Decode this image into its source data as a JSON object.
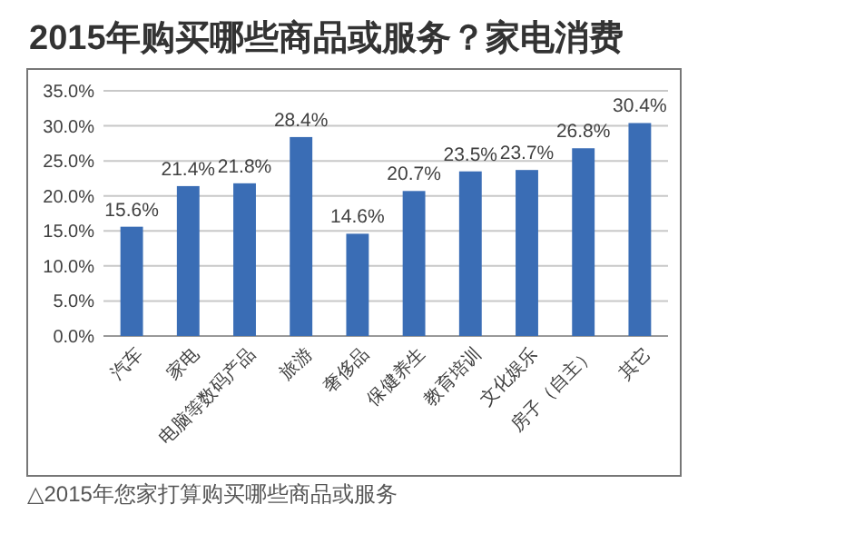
{
  "chart_data": {
    "type": "bar",
    "title": "2015年购买哪些商品或服务？家电消费",
    "categories": [
      "汽车",
      "家电",
      "电脑等数码产品",
      "旅游",
      "奢侈品",
      "保健养生",
      "教育培训",
      "文化娱乐",
      "房子（自主）",
      "其它"
    ],
    "values": [
      15.6,
      21.4,
      21.8,
      28.4,
      14.6,
      20.7,
      23.5,
      23.7,
      26.8,
      30.4
    ],
    "value_labels": [
      "15.6%",
      "21.4%",
      "21.8%",
      "28.4%",
      "14.6%",
      "20.7%",
      "23.5%",
      "23.7%",
      "26.8%",
      "30.4%"
    ],
    "color": "#3a6db5",
    "ylim": [
      0,
      35
    ],
    "yticks": [
      {
        "value": 0,
        "label": "0.0%"
      },
      {
        "value": 5,
        "label": "5.0%"
      },
      {
        "value": 10,
        "label": "10.0%"
      },
      {
        "value": 15,
        "label": "15.0%"
      },
      {
        "value": 20,
        "label": "20.0%"
      },
      {
        "value": 25,
        "label": "25.0%"
      },
      {
        "value": 30,
        "label": "30.0%"
      },
      {
        "value": 35,
        "label": "35.0%"
      }
    ],
    "grid": "y",
    "annotations": [
      "△2015年您家打算购买哪些商品或服务"
    ]
  }
}
